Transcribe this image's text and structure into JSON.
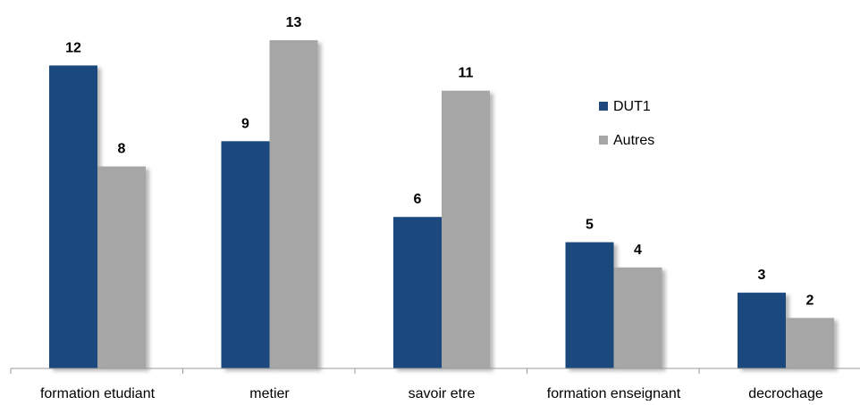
{
  "chart_data": {
    "type": "bar",
    "categories": [
      "formation etudiant",
      "metier",
      "savoir etre",
      "formation enseignant",
      "decrochage"
    ],
    "series": [
      {
        "name": "DUT1",
        "values": [
          12,
          9,
          6,
          5,
          3
        ],
        "color": "#1f497d"
      },
      {
        "name": "Autres",
        "values": [
          8,
          13,
          11,
          4,
          2
        ],
        "color": "#a6a6a6"
      }
    ],
    "title": "",
    "xlabel": "",
    "ylabel": "",
    "ylim": [
      0,
      13
    ],
    "grid": false,
    "legend_position": "right",
    "data_labels": true
  }
}
